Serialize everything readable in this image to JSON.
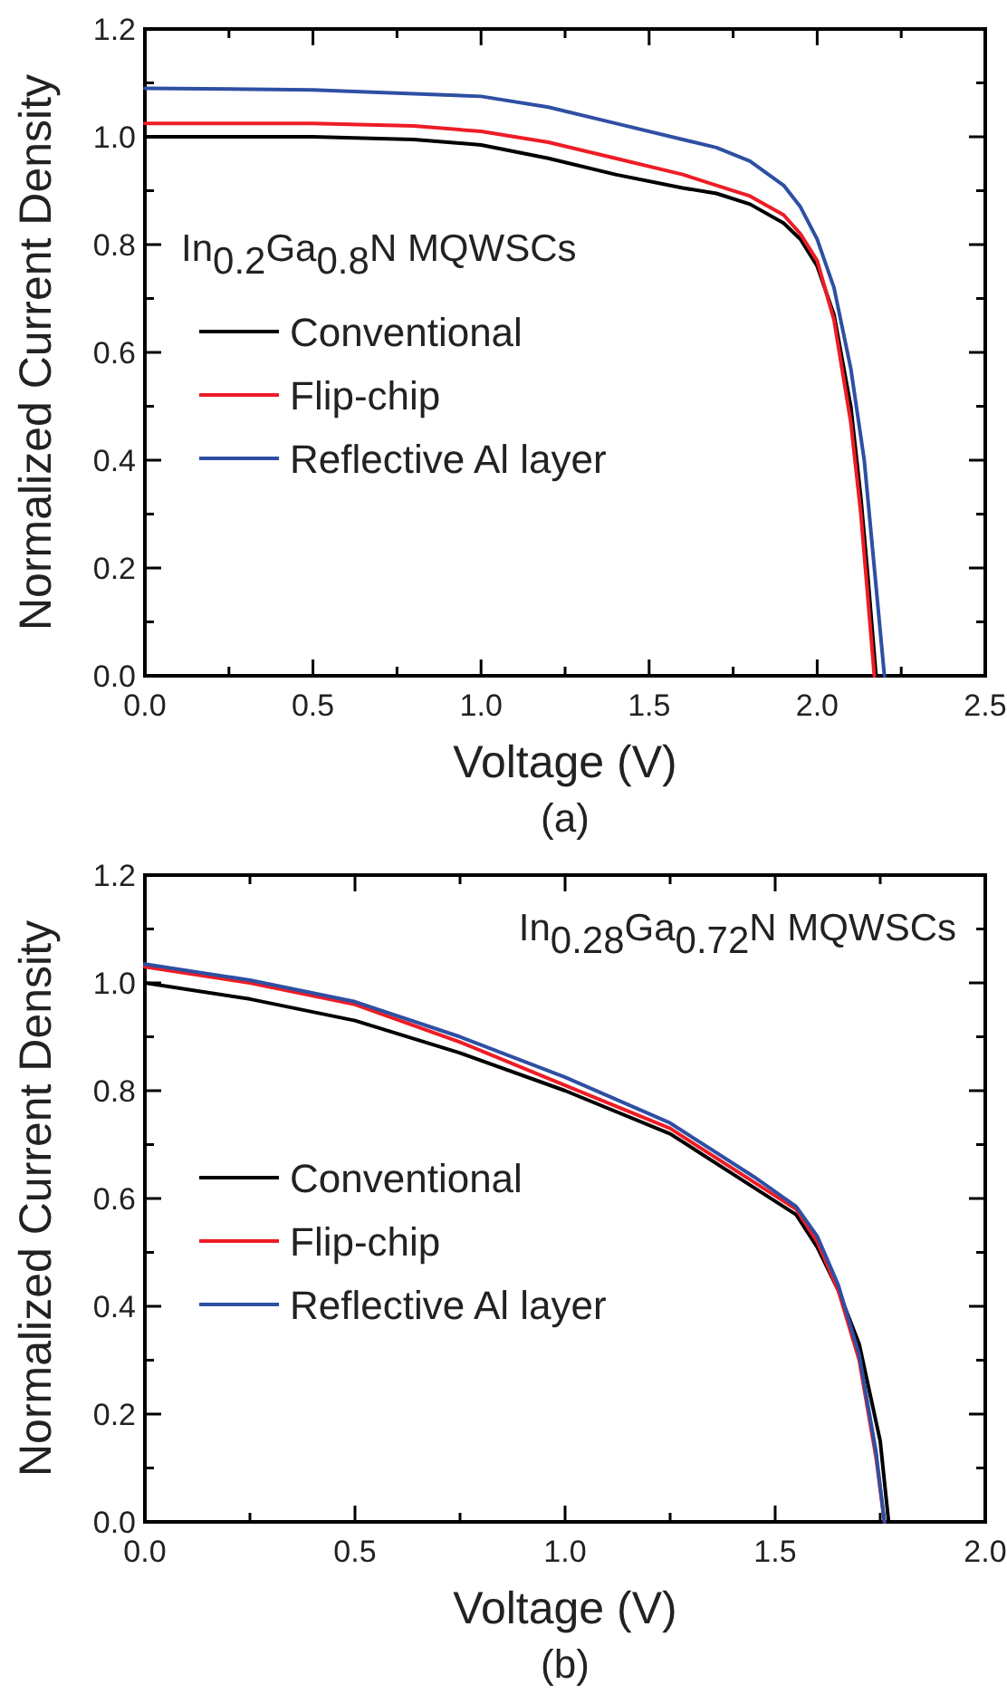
{
  "chart_data": [
    {
      "type": "line",
      "xlabel": "Voltage (V)",
      "ylabel": "Normalized Current Density",
      "annotations": [
        "In$_{0.2}$Ga$_{0.8}$N MQWSCs",
        "(a)"
      ],
      "legend": "left",
      "grid": false,
      "marker": "none",
      "line_style": "solid",
      "xlim": [
        0,
        2.5
      ],
      "ylim": [
        0,
        1.2
      ],
      "xticks": [
        {
          "value": 0,
          "label": "0.0"
        },
        {
          "value": 0.25,
          "label": null
        },
        {
          "value": 0.5,
          "label": "0.5"
        },
        {
          "value": 0.75,
          "label": null
        },
        {
          "value": 1,
          "label": "1.0"
        },
        {
          "value": 1.25,
          "label": null
        },
        {
          "value": 1.5,
          "label": "1.5"
        },
        {
          "value": 1.75,
          "label": null
        },
        {
          "value": 2,
          "label": "2.0"
        },
        {
          "value": 2.25,
          "label": null
        },
        {
          "value": 2.5,
          "label": "2.5"
        }
      ],
      "yticks": [
        {
          "value": 0,
          "label": "0.0"
        },
        {
          "value": 0.1,
          "label": null
        },
        {
          "value": 0.2,
          "label": "0.2"
        },
        {
          "value": 0.3,
          "label": null
        },
        {
          "value": 0.4,
          "label": "0.4"
        },
        {
          "value": 0.5,
          "label": null
        },
        {
          "value": 0.6,
          "label": "0.6"
        },
        {
          "value": 0.7,
          "label": null
        },
        {
          "value": 0.8,
          "label": "0.8"
        },
        {
          "value": 0.9,
          "label": null
        },
        {
          "value": 1,
          "label": "1.0"
        },
        {
          "value": 1.1,
          "label": null
        },
        {
          "value": 1.2,
          "label": "1.2"
        }
      ],
      "series": [
        {
          "name": "Conventional",
          "color": "#000000",
          "x": [
            0,
            0.5,
            0.8,
            1.0,
            1.2,
            1.4,
            1.6,
            1.7,
            1.8,
            1.9,
            1.95,
            2.0,
            2.05,
            2.1,
            2.13,
            2.15,
            2.175
          ],
          "values": [
            1.0,
            1.0,
            0.995,
            0.985,
            0.96,
            0.93,
            0.905,
            0.895,
            0.875,
            0.84,
            0.81,
            0.76,
            0.67,
            0.5,
            0.33,
            0.19,
            0
          ]
        },
        {
          "name": "Flip-chip",
          "color": "#ee1c25",
          "x": [
            0,
            0.5,
            0.8,
            1.0,
            1.2,
            1.4,
            1.6,
            1.7,
            1.8,
            1.9,
            1.95,
            2.0,
            2.05,
            2.1,
            2.13,
            2.15,
            2.17
          ],
          "values": [
            1.025,
            1.025,
            1.02,
            1.01,
            0.99,
            0.96,
            0.93,
            0.91,
            0.89,
            0.855,
            0.82,
            0.77,
            0.66,
            0.47,
            0.3,
            0.15,
            0
          ]
        },
        {
          "name": "Reflective Al layer",
          "color": "#2e4fa3",
          "x": [
            0,
            0.5,
            0.8,
            1.0,
            1.2,
            1.4,
            1.6,
            1.7,
            1.8,
            1.9,
            1.95,
            2.0,
            2.05,
            2.1,
            2.14,
            2.17,
            2.2
          ],
          "values": [
            1.09,
            1.087,
            1.08,
            1.075,
            1.055,
            1.025,
            0.995,
            0.98,
            0.955,
            0.91,
            0.87,
            0.81,
            0.72,
            0.57,
            0.4,
            0.2,
            0
          ]
        }
      ]
    },
    {
      "type": "line",
      "xlabel": "Voltage (V)",
      "ylabel": "Normalized Current Density",
      "annotations": [
        "In$_{0.28}$Ga$_{0.72}$N MQWSCs",
        "(b)"
      ],
      "legend": "left",
      "grid": false,
      "marker": "none",
      "line_style": "solid",
      "xlim": [
        0,
        2
      ],
      "ylim": [
        0,
        1.2
      ],
      "xticks": [
        {
          "value": 0,
          "label": "0.0"
        },
        {
          "value": 0.25,
          "label": null
        },
        {
          "value": 0.5,
          "label": "0.5"
        },
        {
          "value": 0.75,
          "label": null
        },
        {
          "value": 1,
          "label": "1.0"
        },
        {
          "value": 1.25,
          "label": null
        },
        {
          "value": 1.5,
          "label": "1.5"
        },
        {
          "value": 1.75,
          "label": null
        },
        {
          "value": 2,
          "label": "2.0"
        }
      ],
      "yticks": [
        {
          "value": 0,
          "label": "0.0"
        },
        {
          "value": 0.1,
          "label": null
        },
        {
          "value": 0.2,
          "label": "0.2"
        },
        {
          "value": 0.3,
          "label": null
        },
        {
          "value": 0.4,
          "label": "0.4"
        },
        {
          "value": 0.5,
          "label": null
        },
        {
          "value": 0.6,
          "label": "0.6"
        },
        {
          "value": 0.7,
          "label": null
        },
        {
          "value": 0.8,
          "label": "0.8"
        },
        {
          "value": 0.9,
          "label": null
        },
        {
          "value": 1,
          "label": "1.0"
        },
        {
          "value": 1.1,
          "label": null
        },
        {
          "value": 1.2,
          "label": "1.2"
        }
      ],
      "series": [
        {
          "name": "Conventional",
          "color": "#000000",
          "x": [
            0,
            0.25,
            0.5,
            0.75,
            1.0,
            1.25,
            1.45,
            1.55,
            1.6,
            1.65,
            1.7,
            1.75,
            1.77
          ],
          "values": [
            1.0,
            0.97,
            0.93,
            0.87,
            0.8,
            0.72,
            0.62,
            0.57,
            0.51,
            0.43,
            0.33,
            0.15,
            0
          ]
        },
        {
          "name": "Flip-chip",
          "color": "#ee1c25",
          "x": [
            0,
            0.25,
            0.5,
            0.75,
            1.0,
            1.25,
            1.45,
            1.55,
            1.6,
            1.65,
            1.7,
            1.74,
            1.76
          ],
          "values": [
            1.03,
            1.0,
            0.96,
            0.89,
            0.81,
            0.73,
            0.63,
            0.58,
            0.52,
            0.43,
            0.3,
            0.12,
            0
          ]
        },
        {
          "name": "Reflective Al layer",
          "color": "#2e4fa3",
          "x": [
            0,
            0.25,
            0.5,
            0.75,
            1.0,
            1.25,
            1.45,
            1.55,
            1.6,
            1.65,
            1.7,
            1.74,
            1.76
          ],
          "values": [
            1.035,
            1.005,
            0.965,
            0.9,
            0.825,
            0.74,
            0.64,
            0.585,
            0.53,
            0.44,
            0.31,
            0.13,
            0
          ]
        }
      ]
    }
  ]
}
